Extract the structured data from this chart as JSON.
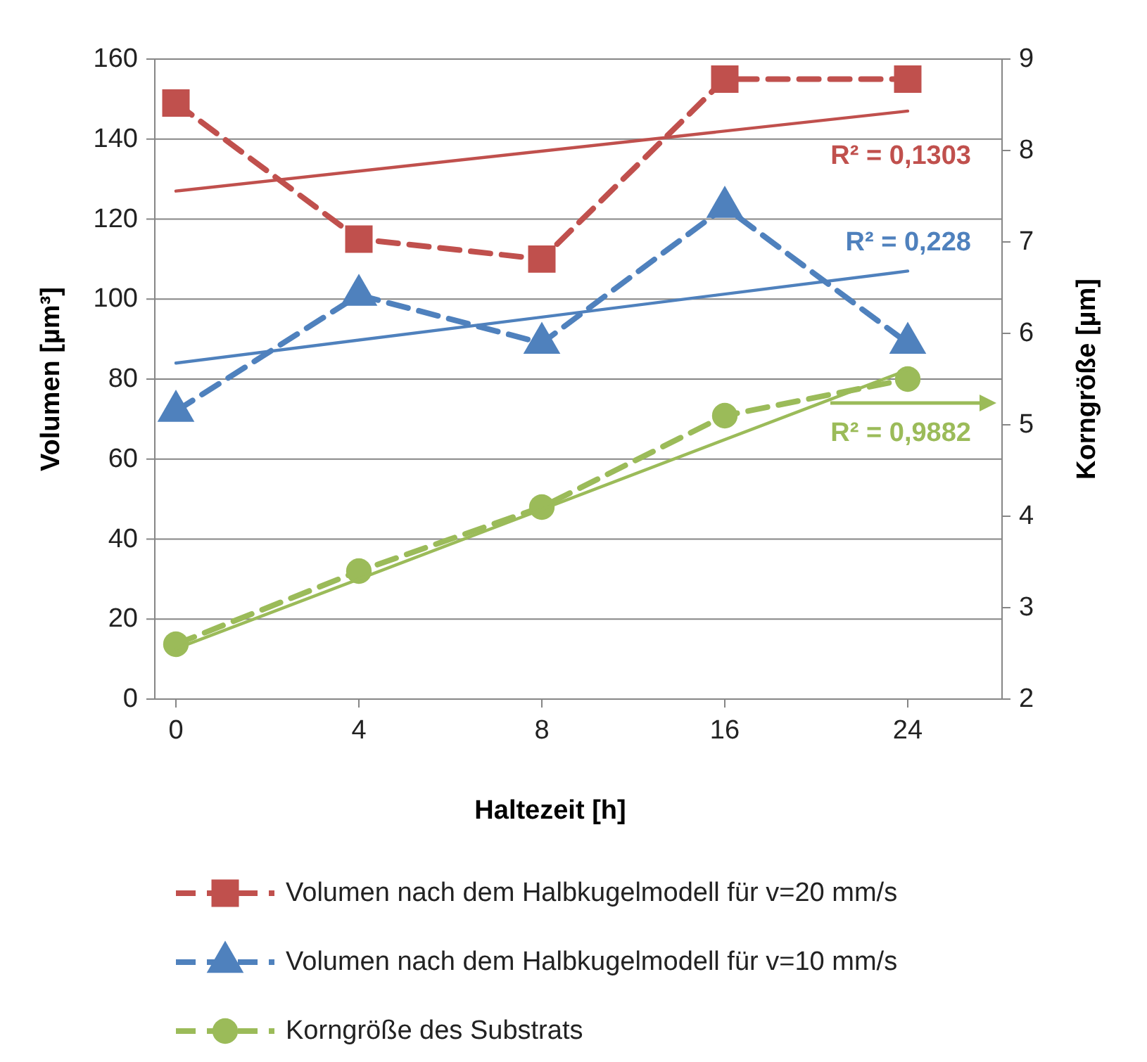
{
  "chart_data": {
    "type": "line",
    "xlabel": "Haltezeit [h]",
    "ylabel": "Volumen [µm³]",
    "y2label": "Korngröße [µm]",
    "categories": [
      "0",
      "4",
      "8",
      "16",
      "24"
    ],
    "ylim": [
      0,
      160
    ],
    "yticks": [
      0,
      20,
      40,
      60,
      80,
      100,
      120,
      140,
      160
    ],
    "y2lim": [
      2,
      9
    ],
    "y2ticks": [
      2,
      3,
      4,
      5,
      6,
      7,
      8,
      9
    ],
    "grid": "y",
    "legend": "bottom",
    "series": [
      {
        "name": "Volumen nach dem Halbkugelmodell für v=20 mm/s",
        "color": "#c0504d",
        "values": [
          149,
          115,
          110,
          155,
          155
        ],
        "marker": "square",
        "line_style": "dashed"
      },
      {
        "name": "Volumen nach dem Halbkugelmodell für v=10 mm/s",
        "color": "#4f81bd",
        "values": [
          72,
          101,
          89,
          123,
          89
        ],
        "marker": "triangle",
        "line_style": "dashed"
      },
      {
        "name": "Korngröße des Substrats",
        "color": "#9bbb59",
        "values": [
          2.6,
          3.4,
          4.1,
          5.1,
          5.5
        ],
        "marker": "circle",
        "line_style": "dashed",
        "axis": "y2"
      },
      {
        "type": "line",
        "color": "#c0504d",
        "x": [
          "0",
          "24"
        ],
        "values": [
          127,
          147
        ],
        "marker": "none",
        "line_style": "solid"
      },
      {
        "type": "line",
        "color": "#4f81bd",
        "x": [
          "0",
          "24"
        ],
        "values": [
          84,
          107
        ],
        "marker": "none",
        "line_style": "solid"
      },
      {
        "type": "line",
        "color": "#9bbb59",
        "x": [
          "0",
          "24"
        ],
        "values": [
          2.55,
          5.6
        ],
        "marker": "none",
        "line_style": "solid",
        "axis": "y2"
      }
    ],
    "annotations": [
      "R² = 0,1303",
      "R² = 0,228",
      "R² = 0,9882"
    ]
  }
}
